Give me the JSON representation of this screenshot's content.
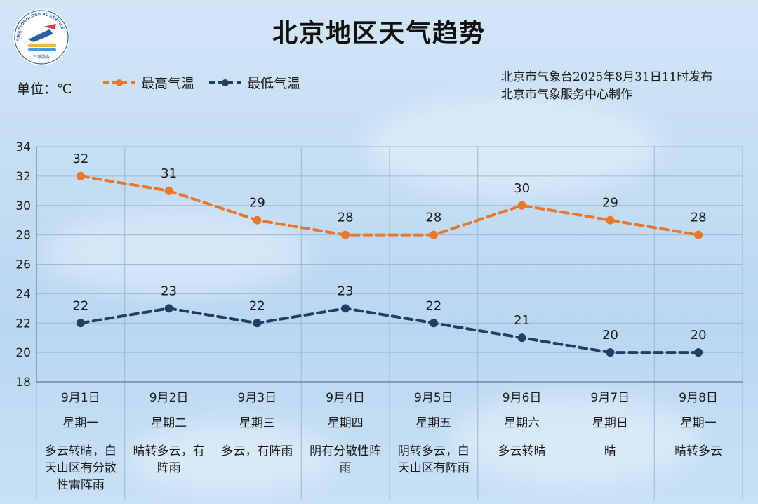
{
  "title": "北京地区天气趋势",
  "unit_label": "单位：℃",
  "issuer_line1": "北京市气象台2025年8月31日11时发布",
  "issuer_line2": "北京市气象服务中心制作",
  "logo": {
    "icon": "meteorological-service-logo",
    "text_top": "METEOROLOGICAL SERVICE",
    "text_side": "BEIJING",
    "text_bottom": "气象服务"
  },
  "colors": {
    "high": "#e8772e",
    "low": "#1f3f63",
    "grid": "#9cb8d3",
    "axis": "#5d7c9c"
  },
  "chart_data": {
    "type": "line",
    "categories": [
      "9月1日",
      "9月2日",
      "9月3日",
      "9月4日",
      "9月5日",
      "9月6日",
      "9月7日",
      "9月8日"
    ],
    "weekdays": [
      "星期一",
      "星期二",
      "星期三",
      "星期四",
      "星期五",
      "星期六",
      "星期日",
      "星期一"
    ],
    "weather": [
      "多云转晴，白天山区有分散性雷阵雨",
      "晴转多云，有阵雨",
      "多云，有阵雨",
      "阴有分散性阵雨",
      "阴转多云，白天山区有阵雨",
      "多云转晴",
      "晴",
      "晴转多云"
    ],
    "series": [
      {
        "name": "最高气温",
        "values": [
          32,
          31,
          29,
          28,
          28,
          30,
          29,
          28
        ]
      },
      {
        "name": "最低气温",
        "values": [
          22,
          23,
          22,
          23,
          22,
          21,
          20,
          20
        ]
      }
    ],
    "ylim": [
      18,
      34
    ],
    "yticks": [
      "18",
      "20",
      "22",
      "24",
      "26",
      "28",
      "30",
      "32",
      "34"
    ],
    "grid": true,
    "legend": "top-left"
  }
}
